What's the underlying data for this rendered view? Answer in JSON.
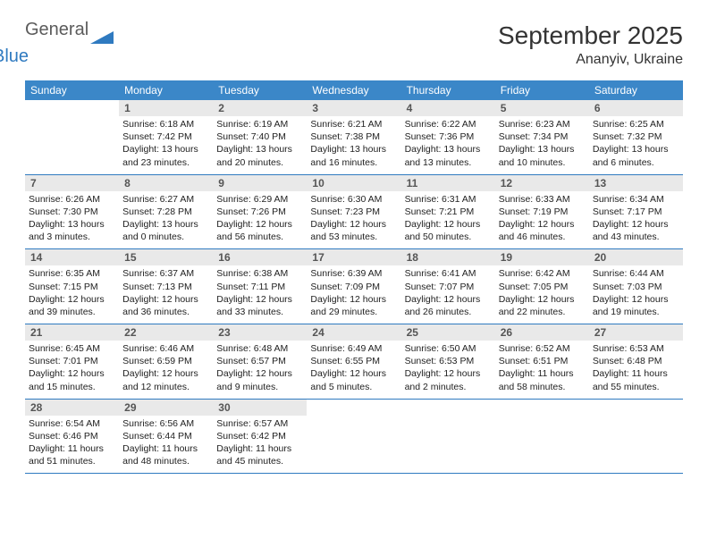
{
  "brand": {
    "word1": "General",
    "word2": "Blue"
  },
  "title": "September 2025",
  "location": "Ananyiv, Ukraine",
  "day_names": [
    "Sunday",
    "Monday",
    "Tuesday",
    "Wednesday",
    "Thursday",
    "Friday",
    "Saturday"
  ],
  "colors": {
    "header_bg": "#3b87c8",
    "header_fg": "#ffffff",
    "row_border": "#2f7ac0",
    "daynum_bg": "#e9e9e9",
    "brand_gray": "#5b5b5b",
    "brand_blue": "#2f7ac0"
  },
  "first_weekday_offset": 1,
  "days": [
    {
      "n": 1,
      "sunrise": "6:18 AM",
      "sunset": "7:42 PM",
      "daylight": "13 hours and 23 minutes."
    },
    {
      "n": 2,
      "sunrise": "6:19 AM",
      "sunset": "7:40 PM",
      "daylight": "13 hours and 20 minutes."
    },
    {
      "n": 3,
      "sunrise": "6:21 AM",
      "sunset": "7:38 PM",
      "daylight": "13 hours and 16 minutes."
    },
    {
      "n": 4,
      "sunrise": "6:22 AM",
      "sunset": "7:36 PM",
      "daylight": "13 hours and 13 minutes."
    },
    {
      "n": 5,
      "sunrise": "6:23 AM",
      "sunset": "7:34 PM",
      "daylight": "13 hours and 10 minutes."
    },
    {
      "n": 6,
      "sunrise": "6:25 AM",
      "sunset": "7:32 PM",
      "daylight": "13 hours and 6 minutes."
    },
    {
      "n": 7,
      "sunrise": "6:26 AM",
      "sunset": "7:30 PM",
      "daylight": "13 hours and 3 minutes."
    },
    {
      "n": 8,
      "sunrise": "6:27 AM",
      "sunset": "7:28 PM",
      "daylight": "13 hours and 0 minutes."
    },
    {
      "n": 9,
      "sunrise": "6:29 AM",
      "sunset": "7:26 PM",
      "daylight": "12 hours and 56 minutes."
    },
    {
      "n": 10,
      "sunrise": "6:30 AM",
      "sunset": "7:23 PM",
      "daylight": "12 hours and 53 minutes."
    },
    {
      "n": 11,
      "sunrise": "6:31 AM",
      "sunset": "7:21 PM",
      "daylight": "12 hours and 50 minutes."
    },
    {
      "n": 12,
      "sunrise": "6:33 AM",
      "sunset": "7:19 PM",
      "daylight": "12 hours and 46 minutes."
    },
    {
      "n": 13,
      "sunrise": "6:34 AM",
      "sunset": "7:17 PM",
      "daylight": "12 hours and 43 minutes."
    },
    {
      "n": 14,
      "sunrise": "6:35 AM",
      "sunset": "7:15 PM",
      "daylight": "12 hours and 39 minutes."
    },
    {
      "n": 15,
      "sunrise": "6:37 AM",
      "sunset": "7:13 PM",
      "daylight": "12 hours and 36 minutes."
    },
    {
      "n": 16,
      "sunrise": "6:38 AM",
      "sunset": "7:11 PM",
      "daylight": "12 hours and 33 minutes."
    },
    {
      "n": 17,
      "sunrise": "6:39 AM",
      "sunset": "7:09 PM",
      "daylight": "12 hours and 29 minutes."
    },
    {
      "n": 18,
      "sunrise": "6:41 AM",
      "sunset": "7:07 PM",
      "daylight": "12 hours and 26 minutes."
    },
    {
      "n": 19,
      "sunrise": "6:42 AM",
      "sunset": "7:05 PM",
      "daylight": "12 hours and 22 minutes."
    },
    {
      "n": 20,
      "sunrise": "6:44 AM",
      "sunset": "7:03 PM",
      "daylight": "12 hours and 19 minutes."
    },
    {
      "n": 21,
      "sunrise": "6:45 AM",
      "sunset": "7:01 PM",
      "daylight": "12 hours and 15 minutes."
    },
    {
      "n": 22,
      "sunrise": "6:46 AM",
      "sunset": "6:59 PM",
      "daylight": "12 hours and 12 minutes."
    },
    {
      "n": 23,
      "sunrise": "6:48 AM",
      "sunset": "6:57 PM",
      "daylight": "12 hours and 9 minutes."
    },
    {
      "n": 24,
      "sunrise": "6:49 AM",
      "sunset": "6:55 PM",
      "daylight": "12 hours and 5 minutes."
    },
    {
      "n": 25,
      "sunrise": "6:50 AM",
      "sunset": "6:53 PM",
      "daylight": "12 hours and 2 minutes."
    },
    {
      "n": 26,
      "sunrise": "6:52 AM",
      "sunset": "6:51 PM",
      "daylight": "11 hours and 58 minutes."
    },
    {
      "n": 27,
      "sunrise": "6:53 AM",
      "sunset": "6:48 PM",
      "daylight": "11 hours and 55 minutes."
    },
    {
      "n": 28,
      "sunrise": "6:54 AM",
      "sunset": "6:46 PM",
      "daylight": "11 hours and 51 minutes."
    },
    {
      "n": 29,
      "sunrise": "6:56 AM",
      "sunset": "6:44 PM",
      "daylight": "11 hours and 48 minutes."
    },
    {
      "n": 30,
      "sunrise": "6:57 AM",
      "sunset": "6:42 PM",
      "daylight": "11 hours and 45 minutes."
    }
  ],
  "labels": {
    "sunrise": "Sunrise:",
    "sunset": "Sunset:",
    "daylight": "Daylight:"
  }
}
